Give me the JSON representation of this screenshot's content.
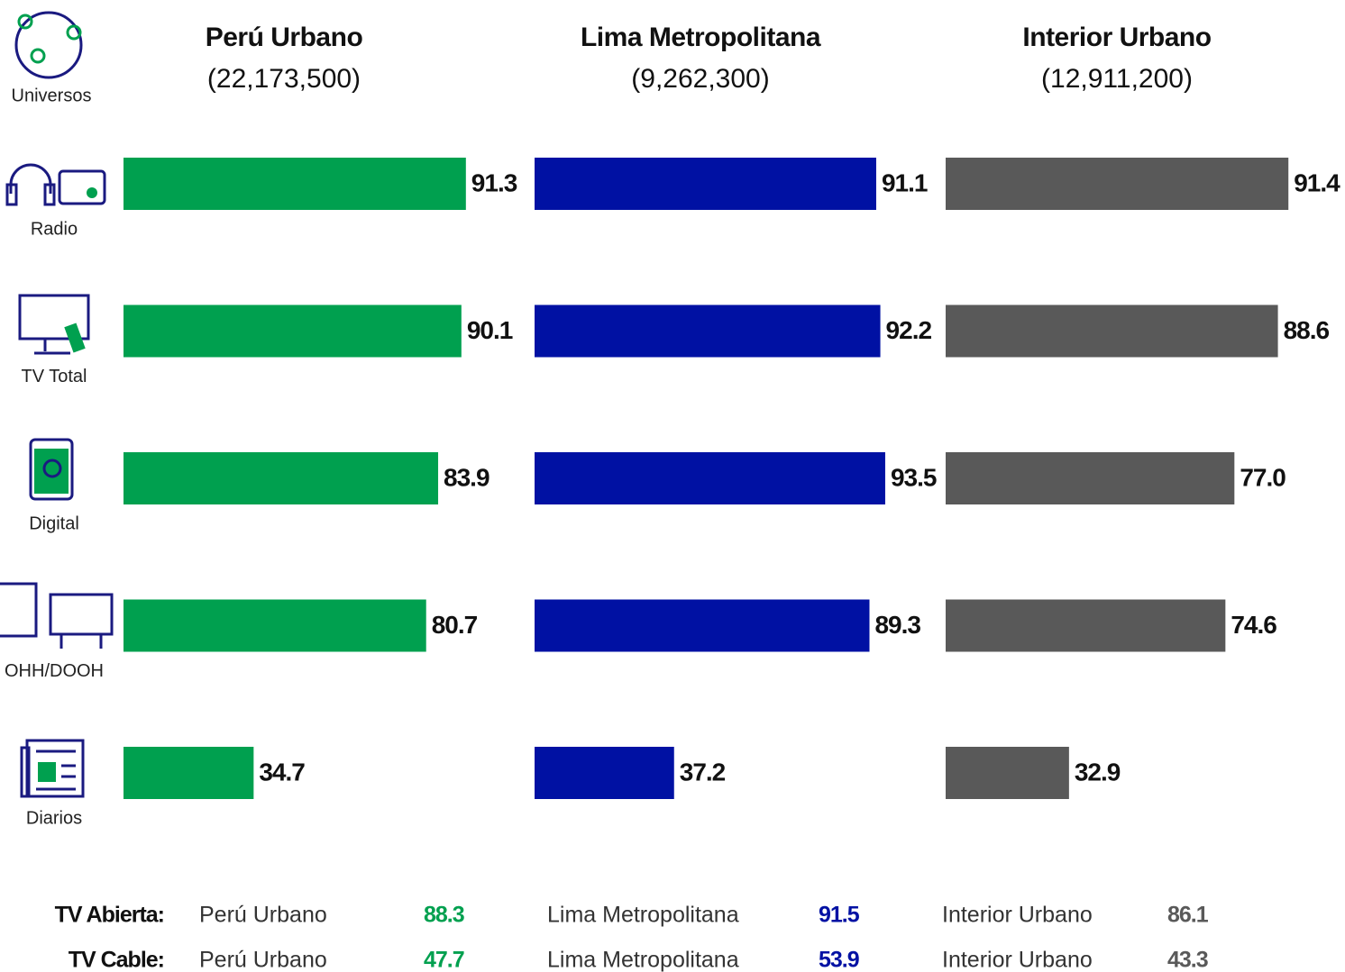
{
  "chart_data": {
    "type": "bar",
    "orientation": "horizontal",
    "universe_label": "Universos",
    "categories": [
      "Radio",
      "TV Total",
      "Digital",
      "OHH/DOOH",
      "Diarios"
    ],
    "xlim": [
      0,
      100
    ],
    "series": [
      {
        "name": "Perú Urbano",
        "subtitle": "(22,173,500)",
        "color": "#00a04f",
        "values": [
          91.3,
          90.1,
          83.9,
          80.7,
          34.7
        ],
        "value_labels": [
          "91.3",
          "90.1",
          "83.9",
          "80.7",
          "34.7"
        ]
      },
      {
        "name": "Lima Metropolitana",
        "subtitle": "(9,262,300)",
        "color": "#0011a3",
        "values": [
          91.1,
          92.2,
          93.5,
          89.3,
          37.2
        ],
        "value_labels": [
          "91.1",
          "92.2",
          "93.5",
          "89.3",
          "37.2"
        ]
      },
      {
        "name": "Interior Urbano",
        "subtitle": "(12,911,200)",
        "color": "#595959",
        "values": [
          91.4,
          88.6,
          77.0,
          74.6,
          32.9
        ],
        "value_labels": [
          "91.4",
          "88.6",
          "77.0",
          "74.6",
          "32.9"
        ]
      }
    ]
  },
  "tv_breakdown": {
    "rows": [
      {
        "label": "TV Abierta:",
        "values": [
          88.3,
          91.5,
          86.1
        ],
        "value_labels": [
          "88.3",
          "91.5",
          "86.1"
        ]
      },
      {
        "label": "TV Cable:",
        "values": [
          47.7,
          53.9,
          43.3
        ],
        "value_labels": [
          "47.7",
          "53.9",
          "43.3"
        ]
      }
    ]
  }
}
